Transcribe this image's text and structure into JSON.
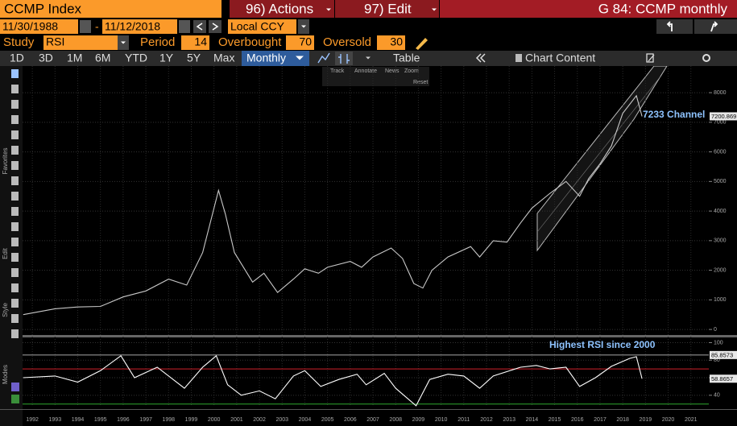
{
  "header": {
    "security": "CCMP Index",
    "actions": "96) Actions",
    "edit": "97) Edit",
    "title": "G 84: CCMP monthly"
  },
  "range": {
    "start": "11/30/1988",
    "separator": "-",
    "end": "11/12/2018",
    "currency": "Local CCY"
  },
  "study": {
    "label": "Study",
    "name": "RSI",
    "period_label": "Period",
    "period": 14,
    "overbought_label": "Overbought",
    "overbought": 70,
    "oversold_label": "Oversold",
    "oversold": 30
  },
  "toolbar": {
    "periods": [
      "1D",
      "3D",
      "1M",
      "6M",
      "YTD",
      "1Y",
      "5Y",
      "Max"
    ],
    "frequency": "Monthly",
    "table": "Table",
    "chart_content": "Chart Content"
  },
  "sidebar": [
    "Favorites",
    "Edit",
    "Style",
    "Modes"
  ],
  "trackbar": [
    "Track",
    "Annotate",
    "News",
    "Zoom",
    "Reset"
  ],
  "chart_data": [
    {
      "type": "line",
      "color": "#c8c8c8",
      "annotation": "7233 Channel",
      "last_value": 7200.869,
      "x": [
        1991.6,
        1993,
        1994,
        1995,
        1996,
        1997,
        1998,
        1998.8,
        1999.5,
        2000.2,
        2000.5,
        2000.9,
        2001.3,
        2001.7,
        2002.2,
        2002.8,
        2003.5,
        2004,
        2004.6,
        2005,
        2006,
        2006.5,
        2007,
        2007.8,
        2008.3,
        2008.8,
        2009.2,
        2009.6,
        2010.3,
        2011.3,
        2011.7,
        2012.3,
        2012.9,
        2013.5,
        2014,
        2014.8,
        2015.5,
        2016.1,
        2016.5,
        2017,
        2017.5,
        2018,
        2018.6,
        2018.85
      ],
      "values": [
        500,
        700,
        760,
        780,
        1100,
        1300,
        1700,
        1500,
        2600,
        4700,
        3900,
        2600,
        2100,
        1600,
        1900,
        1250,
        1700,
        2050,
        1900,
        2100,
        2300,
        2100,
        2450,
        2750,
        2400,
        1550,
        1400,
        2000,
        2450,
        2800,
        2450,
        3000,
        2950,
        3600,
        4100,
        4600,
        5000,
        4500,
        5100,
        5600,
        6200,
        7300,
        7900,
        7200
      ],
      "xlim": [
        1991.57,
        2021.79
      ],
      "xticks": [
        1992,
        1993,
        1994,
        1995,
        1996,
        1997,
        1998,
        1999,
        2000,
        2001,
        2002,
        2003,
        2004,
        2005,
        2006,
        2007,
        2008,
        2009,
        2010,
        2011,
        2012,
        2013,
        2014,
        2015,
        2016,
        2017,
        2018,
        2019,
        2020,
        2021
      ],
      "ylim": [
        -160,
        8900
      ],
      "yticks": [
        0,
        1000,
        2000,
        3000,
        4000,
        5000,
        6000,
        7000,
        8000
      ],
      "grid": true
    },
    {
      "type": "line",
      "color": "#ffffff",
      "annotation": "Highest RSI since 2000",
      "high_value": 85.8573,
      "last_value": 58.8657,
      "x": [
        1991.6,
        1993,
        1994,
        1995,
        1995.9,
        1996.5,
        1997.5,
        1998.7,
        1999.5,
        2000.1,
        2000.6,
        2001.2,
        2002,
        2002.7,
        2003.5,
        2004,
        2004.7,
        2005.5,
        2006.3,
        2006.7,
        2007.5,
        2008,
        2008.9,
        2009.5,
        2010.3,
        2011,
        2011.7,
        2012.3,
        2013.5,
        2014.2,
        2014.8,
        2015.5,
        2016.1,
        2016.8,
        2017.5,
        2018.3,
        2018.6,
        2018.85
      ],
      "values": [
        60,
        62,
        55,
        68,
        85,
        60,
        72,
        48,
        72,
        85,
        52,
        40,
        45,
        36,
        62,
        68,
        50,
        58,
        64,
        52,
        65,
        48,
        28,
        58,
        64,
        62,
        48,
        62,
        72,
        74,
        70,
        72,
        50,
        60,
        73,
        82,
        84,
        58.8657
      ],
      "ylim": [
        27,
        105
      ],
      "yticks": [
        40,
        60,
        80,
        100
      ],
      "grid": true
    }
  ]
}
